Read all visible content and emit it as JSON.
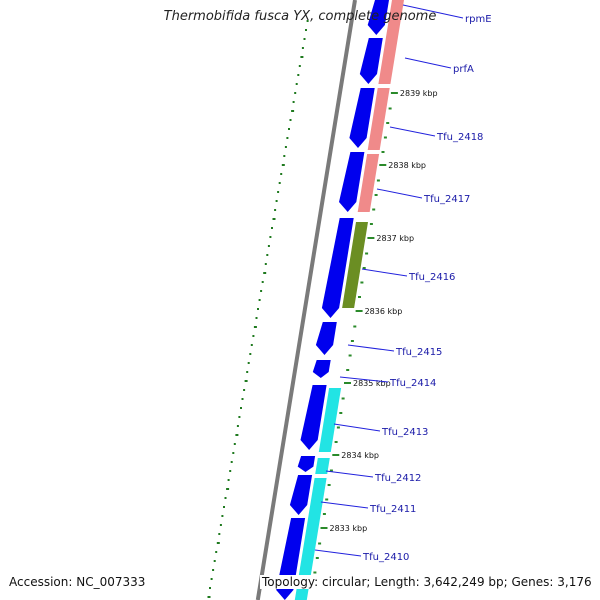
{
  "title": "Thermobifida fusca YX, complete genome",
  "footer": {
    "accession": "Accession: NC_007333",
    "summary": "Topology: circular; Length: 3,642,249 bp; Genes: 3,176"
  },
  "colors": {
    "gene_arrow": "#0000ee",
    "backbone": "#7a7a7a",
    "tick": "#2a8a2a",
    "gc_dots": "#1f7a1f",
    "label_line": "#2222dd",
    "label_text": "#1a1aa8",
    "cog_salmon": "#f08a8a",
    "cog_olive": "#6b8e23",
    "cog_cyan": "#22e4e4"
  },
  "scale_labels": [
    "2839 kbp",
    "2838 kbp",
    "2837 kbp",
    "2836 kbp",
    "2835 kbp",
    "2834 kbp",
    "2833 kbp"
  ],
  "gene_labels": [
    "rpmE",
    "prfA",
    "Tfu_2418",
    "Tfu_2417",
    "Tfu_2416",
    "Tfu_2415",
    "Tfu_2414",
    "Tfu_2413",
    "Tfu_2412",
    "Tfu_2411",
    "Tfu_2410"
  ]
}
